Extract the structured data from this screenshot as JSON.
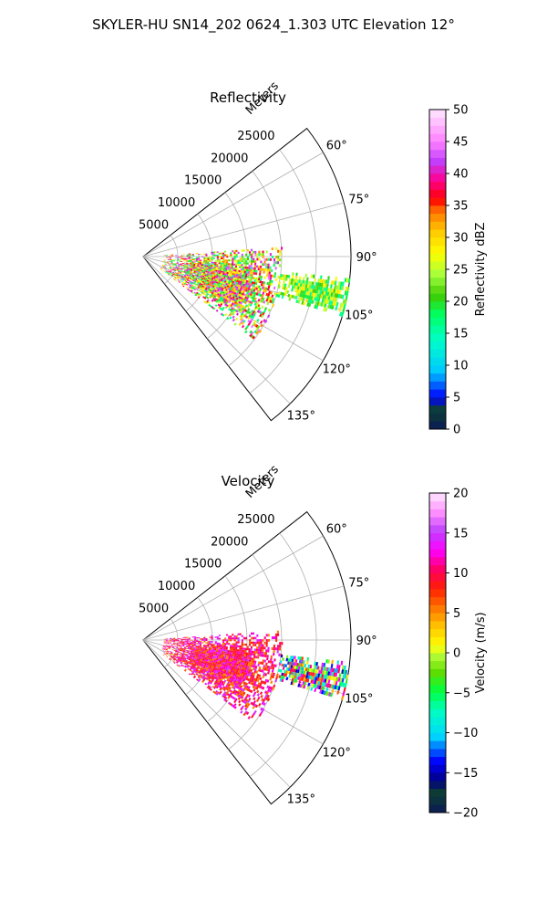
{
  "figure_title": "SKYLER-HU  SN14_202  0624_1.303 UTC Elevation 12°",
  "chart_data": [
    {
      "type": "heatmap",
      "title": "Reflectivity",
      "projection": "polar-sector",
      "theta_range_deg": [
        52,
        142
      ],
      "theta_ticks_deg": [
        60,
        75,
        90,
        105,
        120,
        135
      ],
      "theta_tick_labels": [
        "60°",
        "75°",
        "90°",
        "105°",
        "120°",
        "135°"
      ],
      "r_axis_label": "Meters",
      "r_range": [
        0,
        30000
      ],
      "r_ticks": [
        5000,
        10000,
        15000,
        20000,
        25000
      ],
      "r_tick_labels": [
        "5000",
        "10000",
        "15000",
        "20000",
        "25000"
      ],
      "grid": true,
      "colorbar": {
        "label": "Reflectivity dBZ",
        "range": [
          0,
          50
        ],
        "ticks": [
          "0",
          "5",
          "10",
          "15",
          "20",
          "25",
          "30",
          "35",
          "40",
          "45",
          "50"
        ]
      },
      "echo_regions": [
        {
          "theta_deg": [
            86,
            126
          ],
          "r_m": [
            3000,
            20000
          ],
          "value_range": [
            15,
            45
          ]
        },
        {
          "theta_deg": [
            96,
            106
          ],
          "r_m": [
            20000,
            30000
          ],
          "value_range": [
            15,
            30
          ]
        }
      ]
    },
    {
      "type": "heatmap",
      "title": "Velocity",
      "projection": "polar-sector",
      "theta_range_deg": [
        52,
        142
      ],
      "theta_ticks_deg": [
        60,
        75,
        90,
        105,
        120,
        135
      ],
      "theta_tick_labels": [
        "60°",
        "75°",
        "90°",
        "105°",
        "120°",
        "135°"
      ],
      "r_axis_label": "Meters",
      "r_range": [
        0,
        30000
      ],
      "r_ticks": [
        5000,
        10000,
        15000,
        20000,
        25000
      ],
      "r_tick_labels": [
        "5000",
        "10000",
        "15000",
        "20000",
        "25000"
      ],
      "grid": true,
      "colorbar": {
        "label": "Velocity (m/s)",
        "range": [
          -20,
          20
        ],
        "ticks": [
          "−20",
          "−15",
          "−10",
          "−5",
          "0",
          "5",
          "10",
          "15",
          "20"
        ]
      },
      "echo_regions": [
        {
          "theta_deg": [
            86,
            126
          ],
          "r_m": [
            3000,
            20000
          ],
          "value_range": [
            5,
            15
          ]
        },
        {
          "theta_deg": [
            96,
            106
          ],
          "r_m": [
            20000,
            30000
          ],
          "value_range": [
            -15,
            15
          ]
        }
      ]
    }
  ]
}
